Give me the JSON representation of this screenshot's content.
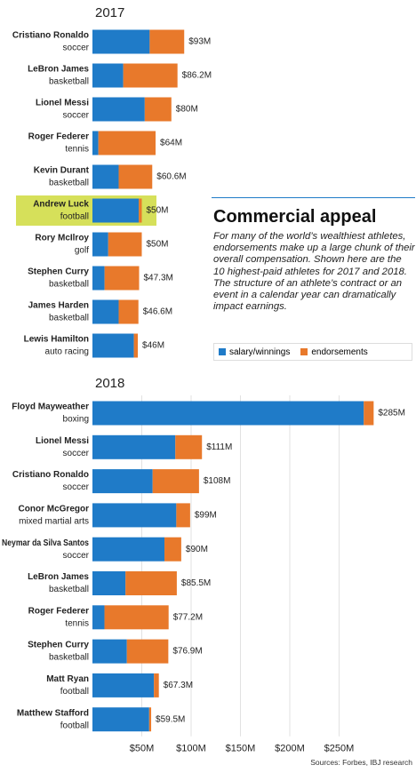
{
  "chart_data": {
    "type": "bar",
    "orientation": "horizontal",
    "stacked": true,
    "title": "Commercial appeal",
    "subtitle": "For many of the world’s wealthiest athletes, endorsements make up a large chunk of their overall compensation. Shown here are the 10 highest-paid athletes for 2017 and 2018. The structure of an athlete’s contract or an event in a calendar year can dramatically impact earnings.",
    "source": "Sources: Forbes, IBJ research",
    "series": [
      {
        "name": "salary/winnings",
        "color": "#1f7bc8"
      },
      {
        "name": "endorsements",
        "color": "#e8792b"
      }
    ],
    "xlim": [
      0,
      300
    ],
    "xticks": [
      {
        "value": 50,
        "label": "$50M"
      },
      {
        "value": 100,
        "label": "$100M"
      },
      {
        "value": 150,
        "label": "$150M"
      },
      {
        "value": 200,
        "label": "$200M"
      },
      {
        "value": 250,
        "label": "$250M"
      }
    ],
    "grid": true,
    "highlight_color": "#d6e05a",
    "panels": [
      {
        "title": "2017",
        "categories": [
          "Cristiano Ronaldo",
          "LeBron James",
          "Lionel Messi",
          "Roger Federer",
          "Kevin Durant",
          "Andrew Luck",
          "Rory McIlroy",
          "Stephen Curry",
          "James Harden",
          "Lewis Hamilton"
        ],
        "sports": [
          "soccer",
          "basketball",
          "soccer",
          "tennis",
          "basketball",
          "football",
          "golf",
          "basketball",
          "basketball",
          "auto racing"
        ],
        "values": [
          [
            58,
            31.2,
            53,
            6,
            26.6,
            47,
            16,
            12.3,
            26.6,
            42
          ],
          [
            35,
            55,
            27,
            58,
            34,
            3,
            34,
            35,
            20,
            4
          ]
        ],
        "totals": [
          93,
          86.2,
          80,
          64,
          60.6,
          50,
          50,
          47.3,
          46.6,
          46
        ],
        "total_labels": [
          "$93M",
          "$86.2M",
          "$80M",
          "$64M",
          "$60.6M",
          "$50M",
          "$50M",
          "$47.3M",
          "$46.6M",
          "$46M"
        ],
        "highlight": 5
      },
      {
        "title": "2018",
        "categories": [
          "Floyd Mayweather",
          "Lionel Messi",
          "Cristiano Ronaldo",
          "Conor McGregor",
          "Neymar da Silva Santos",
          "LeBron James",
          "Roger Federer",
          "Stephen Curry",
          "Matt Ryan",
          "Matthew Stafford"
        ],
        "sports": [
          "boxing",
          "soccer",
          "soccer",
          "mixed martial arts",
          "soccer",
          "basketball",
          "tennis",
          "basketball",
          "football",
          "football"
        ],
        "values": [
          [
            275,
            84,
            61,
            85,
            73,
            33.5,
            12.2,
            34.9,
            62.3,
            57.5
          ],
          [
            10,
            27,
            47,
            14,
            17,
            52,
            65,
            42,
            5,
            2
          ]
        ],
        "totals": [
          285,
          111,
          108,
          99,
          90,
          85.5,
          77.2,
          76.9,
          67.3,
          59.5
        ],
        "total_labels": [
          "$285M",
          "$111M",
          "$108M",
          "$99M",
          "$90M",
          "$85.5M",
          "$77.2M",
          "$76.9M",
          "$67.3M",
          "$59.5M"
        ]
      }
    ]
  }
}
